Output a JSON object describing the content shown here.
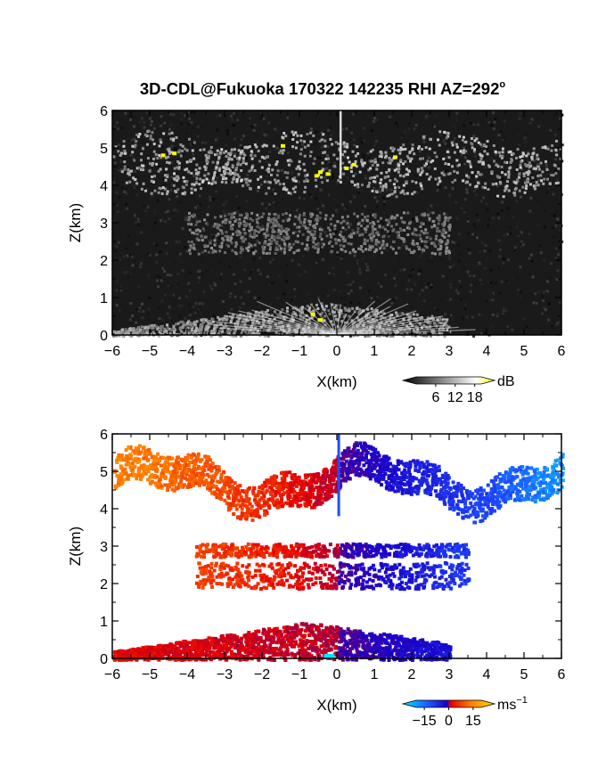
{
  "figure": {
    "title_main": "3D-CDL@Fukuoka 170322 142235 RHI AZ=292",
    "title_deg": "o"
  },
  "chart_data": [
    {
      "type": "heatmap",
      "variable": "signal intensity",
      "xlabel": "X(km)",
      "ylabel": "Z(km)",
      "xlim": [
        -6,
        6
      ],
      "ylim": [
        0,
        6
      ],
      "x_ticks": [
        "−6",
        "−5",
        "−4",
        "−3",
        "−2",
        "−1",
        "0",
        "1",
        "2",
        "3",
        "4",
        "5",
        "6"
      ],
      "y_ticks": [
        "0",
        "1",
        "2",
        "3",
        "4",
        "5",
        "6"
      ],
      "colorbar": {
        "unit": "dB",
        "ticks": [
          "6",
          "12",
          "18"
        ],
        "tick_values": [
          6,
          12,
          18
        ],
        "range": [
          0,
          20
        ],
        "colors": [
          "#000000",
          "#ffffff",
          "#ffff00"
        ]
      },
      "layers": [
        {
          "name": "cloud layer",
          "x": [
            -6,
            6
          ],
          "z": [
            3.9,
            5.5
          ],
          "level_db": 14
        },
        {
          "name": "middle layer",
          "x": [
            -4,
            3
          ],
          "z": [
            2.2,
            3.3
          ],
          "level_db": 9
        },
        {
          "name": "boundary layer",
          "x": [
            -6,
            3
          ],
          "z": [
            0,
            0.9
          ],
          "level_db": 12
        }
      ],
      "grid": false
    },
    {
      "type": "heatmap",
      "variable": "Doppler velocity",
      "xlabel": "X(km)",
      "ylabel": "Z(km)",
      "xlim": [
        -6,
        6
      ],
      "ylim": [
        0,
        6
      ],
      "x_ticks": [
        "−6",
        "−5",
        "−4",
        "−3",
        "−2",
        "−1",
        "0",
        "1",
        "2",
        "3",
        "4",
        "5",
        "6"
      ],
      "y_ticks": [
        "0",
        "1",
        "2",
        "3",
        "4",
        "5",
        "6"
      ],
      "colorbar": {
        "unit": "ms",
        "unit_exp": "−1",
        "ticks": [
          "−15",
          "0",
          "15"
        ],
        "tick_values": [
          -15,
          0,
          15
        ],
        "range": [
          -20,
          20
        ],
        "colors": [
          "#00e5ff",
          "#1e4cff",
          "#1a00c8",
          "#e60000",
          "#ff8000",
          "#ffe000"
        ]
      },
      "layers": [
        {
          "name": "cloud layer",
          "x": [
            -6,
            6
          ],
          "z": [
            3.8,
            5.9
          ],
          "velocity_left_ms": 12,
          "velocity_right_ms": -16
        },
        {
          "name": "middle layer",
          "x": [
            -3.8,
            3.5
          ],
          "z": [
            1.8,
            3.2
          ],
          "velocity_left_ms": 8,
          "velocity_right_ms": -10
        },
        {
          "name": "boundary layer",
          "x": [
            -6,
            3
          ],
          "z": [
            0,
            1.0
          ],
          "velocity_left_ms": 4,
          "velocity_right_ms": -6
        }
      ],
      "grid": false
    }
  ]
}
